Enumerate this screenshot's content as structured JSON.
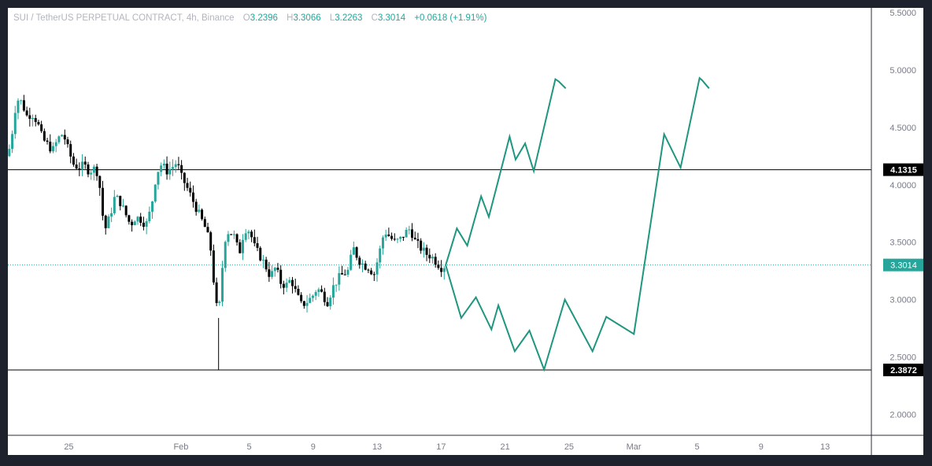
{
  "header": {
    "symbol": "SUI / TetherUS PERPETUAL CONTRACT, 4h, Binance",
    "o_label": "O",
    "open": "3.2396",
    "h_label": "H",
    "high": "3.3066",
    "l_label": "L",
    "low": "3.2263",
    "c_label": "C",
    "close": "3.3014",
    "change": "+0.0618 (+1.91%)"
  },
  "colors": {
    "up": "#26a69a",
    "down": "#000000",
    "projection": "#1e9680",
    "last_price_line": "#26a69a"
  },
  "chart_data": {
    "type": "candlestick",
    "x_domain": [
      0,
      1
    ],
    "ylim": [
      1.9,
      5.5
    ],
    "y_ticks": [
      2.0,
      2.5,
      3.0,
      3.5,
      4.0,
      4.5,
      5.0,
      5.5
    ],
    "y_tick_labels": [
      "2.0000",
      "2.5000",
      "3.0000",
      "3.5000",
      "4.0000",
      "4.5000",
      "5.0000",
      "5.5000"
    ],
    "x_ticks": [
      {
        "label": "25",
        "x": 0.0706
      },
      {
        "label": "Feb",
        "x": 0.2005
      },
      {
        "label": "5",
        "x": 0.2794
      },
      {
        "label": "9",
        "x": 0.3535
      },
      {
        "label": "13",
        "x": 0.4276
      },
      {
        "label": "17",
        "x": 0.5017
      },
      {
        "label": "21",
        "x": 0.5758
      },
      {
        "label": "25",
        "x": 0.6499
      },
      {
        "label": "Mar",
        "x": 0.7248
      },
      {
        "label": "5",
        "x": 0.7981
      },
      {
        "label": "9",
        "x": 0.8722
      },
      {
        "label": "13",
        "x": 0.9463
      }
    ],
    "horizontal_lines": [
      {
        "value": 4.1315,
        "label": "4.1315"
      },
      {
        "value": 2.3872,
        "label": "2.3872"
      }
    ],
    "last_price": {
      "value": 3.3014,
      "label": "3.3014"
    },
    "price_path": [
      [
        0.0,
        4.25
      ],
      [
        0.004,
        4.4
      ],
      [
        0.01,
        4.75
      ],
      [
        0.016,
        4.72
      ],
      [
        0.022,
        4.6
      ],
      [
        0.028,
        4.62
      ],
      [
        0.034,
        4.55
      ],
      [
        0.04,
        4.4
      ],
      [
        0.046,
        4.35
      ],
      [
        0.052,
        4.3
      ],
      [
        0.058,
        4.4
      ],
      [
        0.064,
        4.45
      ],
      [
        0.07,
        4.3
      ],
      [
        0.076,
        4.18
      ],
      [
        0.082,
        4.15
      ],
      [
        0.088,
        4.17
      ],
      [
        0.094,
        4.12
      ],
      [
        0.1,
        4.14
      ],
      [
        0.105,
        4.1
      ],
      [
        0.108,
        3.85
      ],
      [
        0.112,
        3.6
      ],
      [
        0.118,
        3.72
      ],
      [
        0.124,
        3.9
      ],
      [
        0.13,
        3.85
      ],
      [
        0.136,
        3.75
      ],
      [
        0.142,
        3.65
      ],
      [
        0.148,
        3.72
      ],
      [
        0.154,
        3.7
      ],
      [
        0.16,
        3.65
      ],
      [
        0.166,
        3.8
      ],
      [
        0.172,
        4.1
      ],
      [
        0.178,
        4.18
      ],
      [
        0.184,
        4.12
      ],
      [
        0.19,
        4.15
      ],
      [
        0.196,
        4.2
      ],
      [
        0.2,
        4.08
      ],
      [
        0.206,
        4.0
      ],
      [
        0.212,
        3.9
      ],
      [
        0.218,
        3.8
      ],
      [
        0.224,
        3.7
      ],
      [
        0.23,
        3.6
      ],
      [
        0.236,
        3.4
      ],
      [
        0.24,
        3.0
      ],
      [
        0.244,
        2.85
      ],
      [
        0.248,
        3.25
      ],
      [
        0.252,
        3.55
      ],
      [
        0.256,
        3.6
      ],
      [
        0.262,
        3.55
      ],
      [
        0.268,
        3.4
      ],
      [
        0.274,
        3.62
      ],
      [
        0.28,
        3.6
      ],
      [
        0.286,
        3.45
      ],
      [
        0.292,
        3.38
      ],
      [
        0.298,
        3.3
      ],
      [
        0.304,
        3.2
      ],
      [
        0.31,
        3.28
      ],
      [
        0.316,
        3.15
      ],
      [
        0.322,
        3.12
      ],
      [
        0.328,
        3.18
      ],
      [
        0.334,
        3.05
      ],
      [
        0.34,
        2.95
      ],
      [
        0.346,
        2.98
      ],
      [
        0.352,
        3.02
      ],
      [
        0.358,
        3.1
      ],
      [
        0.364,
        3.05
      ],
      [
        0.37,
        2.98
      ],
      [
        0.376,
        3.1
      ],
      [
        0.382,
        3.18
      ],
      [
        0.388,
        3.22
      ],
      [
        0.394,
        3.25
      ],
      [
        0.4,
        3.45
      ],
      [
        0.406,
        3.35
      ],
      [
        0.412,
        3.3
      ],
      [
        0.418,
        3.28
      ],
      [
        0.424,
        3.22
      ],
      [
        0.43,
        3.4
      ],
      [
        0.436,
        3.6
      ],
      [
        0.442,
        3.55
      ],
      [
        0.448,
        3.5
      ],
      [
        0.454,
        3.52
      ],
      [
        0.46,
        3.58
      ],
      [
        0.466,
        3.62
      ],
      [
        0.472,
        3.5
      ],
      [
        0.478,
        3.45
      ],
      [
        0.484,
        3.4
      ],
      [
        0.49,
        3.38
      ],
      [
        0.496,
        3.33
      ],
      [
        0.502,
        3.28
      ],
      [
        0.507,
        3.3
      ]
    ],
    "bullish_scenario": [
      [
        0.507,
        3.3
      ],
      [
        0.52,
        3.62
      ],
      [
        0.532,
        3.47
      ],
      [
        0.548,
        3.9
      ],
      [
        0.557,
        3.72
      ],
      [
        0.581,
        4.42
      ],
      [
        0.588,
        4.22
      ],
      [
        0.599,
        4.36
      ],
      [
        0.609,
        4.12
      ],
      [
        0.634,
        4.92
      ],
      [
        0.638,
        4.9
      ],
      [
        0.646,
        4.84
      ]
    ],
    "bullish_scenario_2": [
      [
        0.507,
        3.3
      ],
      [
        0.525,
        2.84
      ],
      [
        0.542,
        3.02
      ],
      [
        0.56,
        2.74
      ],
      [
        0.568,
        2.95
      ],
      [
        0.587,
        2.55
      ],
      [
        0.604,
        2.73
      ],
      [
        0.621,
        2.39
      ],
      [
        0.645,
        3.0
      ],
      [
        0.677,
        2.55
      ],
      [
        0.693,
        2.85
      ],
      [
        0.725,
        2.7
      ],
      [
        0.76,
        4.44
      ],
      [
        0.779,
        4.15
      ],
      [
        0.801,
        4.93
      ],
      [
        0.804,
        4.91
      ],
      [
        0.812,
        4.84
      ]
    ]
  }
}
